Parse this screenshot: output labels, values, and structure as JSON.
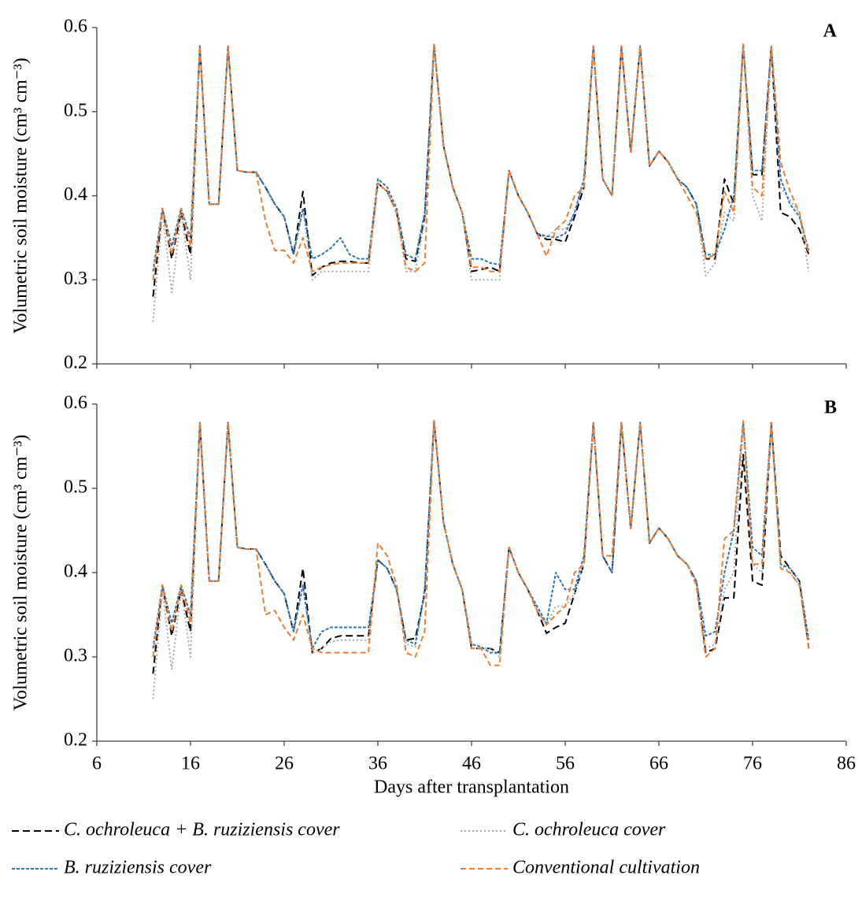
{
  "chart_data": [
    {
      "type": "line",
      "panel_label": "A",
      "ylabel": "Volumetric soil moisture (cm³ cm⁻³)",
      "xlim": [
        6,
        86
      ],
      "xticks": [
        6,
        16,
        26,
        36,
        46,
        56,
        66,
        76,
        86
      ],
      "xtick_labels": false,
      "ylim": [
        0.2,
        0.6
      ],
      "yticks": [
        0.2,
        0.3,
        0.4,
        0.5,
        0.6
      ],
      "x": [
        12,
        13,
        14,
        15,
        16,
        17,
        18,
        19,
        20,
        21,
        22,
        23,
        24,
        25,
        26,
        27,
        28,
        29,
        30,
        31,
        32,
        33,
        34,
        35,
        36,
        37,
        38,
        39,
        40,
        41,
        42,
        43,
        44,
        45,
        46,
        47,
        48,
        49,
        50,
        51,
        52,
        53,
        54,
        55,
        56,
        57,
        58,
        59,
        60,
        61,
        62,
        63,
        64,
        65,
        66,
        67,
        68,
        69,
        70,
        71,
        72,
        73,
        74,
        75,
        76,
        77,
        78,
        79,
        80,
        81,
        82
      ],
      "series": [
        {
          "color": "#000000",
          "dash": "9,5",
          "values": [
            0.28,
            0.385,
            0.325,
            0.38,
            0.33,
            0.578,
            0.39,
            0.39,
            0.578,
            0.43,
            0.428,
            0.428,
            0.41,
            0.39,
            0.375,
            0.33,
            0.405,
            0.305,
            0.315,
            0.32,
            0.322,
            0.322,
            0.32,
            0.32,
            0.415,
            0.405,
            0.38,
            0.325,
            0.322,
            0.375,
            0.58,
            0.46,
            0.41,
            0.38,
            0.31,
            0.312,
            0.315,
            0.31,
            0.43,
            0.4,
            0.38,
            0.355,
            0.348,
            0.348,
            0.345,
            0.375,
            0.41,
            0.578,
            0.42,
            0.4,
            0.578,
            0.452,
            0.578,
            0.435,
            0.453,
            0.44,
            0.42,
            0.41,
            0.39,
            0.325,
            0.325,
            0.42,
            0.39,
            0.58,
            0.425,
            0.425,
            0.578,
            0.38,
            0.375,
            0.36,
            0.33
          ]
        },
        {
          "color": "#a6a6a6",
          "dash": "2,3",
          "values": [
            0.25,
            0.38,
            0.285,
            0.38,
            0.3,
            0.578,
            0.39,
            0.39,
            0.578,
            0.43,
            0.428,
            0.428,
            0.41,
            0.39,
            0.375,
            0.33,
            0.385,
            0.3,
            0.31,
            0.31,
            0.31,
            0.31,
            0.31,
            0.31,
            0.415,
            0.405,
            0.38,
            0.31,
            0.31,
            0.37,
            0.58,
            0.46,
            0.41,
            0.38,
            0.3,
            0.3,
            0.3,
            0.3,
            0.43,
            0.4,
            0.38,
            0.355,
            0.35,
            0.36,
            0.36,
            0.38,
            0.42,
            0.578,
            0.42,
            0.4,
            0.578,
            0.452,
            0.578,
            0.435,
            0.453,
            0.44,
            0.42,
            0.41,
            0.39,
            0.305,
            0.32,
            0.38,
            0.37,
            0.58,
            0.4,
            0.37,
            0.578,
            0.41,
            0.395,
            0.38,
            0.31
          ]
        },
        {
          "color": "#2e75b6",
          "dash": "4,2",
          "values": [
            0.31,
            0.385,
            0.34,
            0.385,
            0.35,
            0.578,
            0.39,
            0.39,
            0.578,
            0.43,
            0.428,
            0.428,
            0.41,
            0.39,
            0.375,
            0.33,
            0.385,
            0.325,
            0.33,
            0.338,
            0.35,
            0.33,
            0.325,
            0.325,
            0.42,
            0.41,
            0.385,
            0.33,
            0.325,
            0.38,
            0.58,
            0.46,
            0.41,
            0.38,
            0.325,
            0.325,
            0.32,
            0.318,
            0.43,
            0.4,
            0.38,
            0.355,
            0.352,
            0.35,
            0.355,
            0.38,
            0.42,
            0.578,
            0.42,
            0.4,
            0.578,
            0.452,
            0.578,
            0.435,
            0.453,
            0.44,
            0.42,
            0.41,
            0.39,
            0.33,
            0.33,
            0.36,
            0.4,
            0.58,
            0.43,
            0.43,
            0.578,
            0.42,
            0.39,
            0.375,
            0.335
          ]
        },
        {
          "color": "#ed7d31",
          "dash": "7,4",
          "values": [
            0.3,
            0.385,
            0.33,
            0.385,
            0.34,
            0.578,
            0.39,
            0.39,
            0.578,
            0.43,
            0.428,
            0.428,
            0.37,
            0.335,
            0.335,
            0.32,
            0.35,
            0.31,
            0.315,
            0.318,
            0.32,
            0.32,
            0.32,
            0.32,
            0.415,
            0.405,
            0.38,
            0.315,
            0.31,
            0.32,
            0.58,
            0.46,
            0.41,
            0.38,
            0.315,
            0.315,
            0.31,
            0.31,
            0.43,
            0.4,
            0.38,
            0.355,
            0.328,
            0.36,
            0.37,
            0.4,
            0.41,
            0.578,
            0.42,
            0.4,
            0.578,
            0.452,
            0.578,
            0.435,
            0.453,
            0.44,
            0.42,
            0.4,
            0.38,
            0.325,
            0.33,
            0.405,
            0.38,
            0.58,
            0.41,
            0.4,
            0.578,
            0.44,
            0.405,
            0.38,
            0.33
          ]
        }
      ]
    },
    {
      "type": "line",
      "panel_label": "B",
      "ylabel": "Volumetric soil moisture (cm³ cm⁻³)",
      "xlabel": "Days after transplantation",
      "xlim": [
        6,
        86
      ],
      "xticks": [
        6,
        16,
        26,
        36,
        46,
        56,
        66,
        76,
        86
      ],
      "xtick_labels": true,
      "ylim": [
        0.2,
        0.6
      ],
      "yticks": [
        0.2,
        0.3,
        0.4,
        0.5,
        0.6
      ],
      "x": [
        12,
        13,
        14,
        15,
        16,
        17,
        18,
        19,
        20,
        21,
        22,
        23,
        24,
        25,
        26,
        27,
        28,
        29,
        30,
        31,
        32,
        33,
        34,
        35,
        36,
        37,
        38,
        39,
        40,
        41,
        42,
        43,
        44,
        45,
        46,
        47,
        48,
        49,
        50,
        51,
        52,
        53,
        54,
        55,
        56,
        57,
        58,
        59,
        60,
        61,
        62,
        63,
        64,
        65,
        66,
        67,
        68,
        69,
        70,
        71,
        72,
        73,
        74,
        75,
        76,
        77,
        78,
        79,
        80,
        81,
        82
      ],
      "series": [
        {
          "name": "C. ochroleuca + B. ruziziensis cover",
          "color": "#000000",
          "dash": "9,5",
          "values": [
            0.28,
            0.385,
            0.325,
            0.38,
            0.33,
            0.578,
            0.39,
            0.39,
            0.578,
            0.43,
            0.428,
            0.428,
            0.41,
            0.39,
            0.375,
            0.33,
            0.405,
            0.305,
            0.31,
            0.322,
            0.325,
            0.325,
            0.325,
            0.325,
            0.415,
            0.405,
            0.38,
            0.32,
            0.322,
            0.375,
            0.58,
            0.46,
            0.41,
            0.38,
            0.31,
            0.31,
            0.31,
            0.305,
            0.43,
            0.4,
            0.38,
            0.355,
            0.328,
            0.335,
            0.34,
            0.375,
            0.41,
            0.578,
            0.42,
            0.4,
            0.578,
            0.452,
            0.578,
            0.435,
            0.453,
            0.44,
            0.42,
            0.41,
            0.39,
            0.305,
            0.31,
            0.37,
            0.37,
            0.54,
            0.39,
            0.385,
            0.578,
            0.42,
            0.405,
            0.39,
            0.31
          ]
        },
        {
          "name": "C. ochroleuca cover",
          "color": "#a6a6a6",
          "dash": "2,3",
          "values": [
            0.25,
            0.38,
            0.285,
            0.38,
            0.3,
            0.578,
            0.39,
            0.39,
            0.578,
            0.43,
            0.428,
            0.428,
            0.41,
            0.39,
            0.375,
            0.33,
            0.385,
            0.305,
            0.31,
            0.318,
            0.32,
            0.32,
            0.32,
            0.32,
            0.415,
            0.405,
            0.38,
            0.315,
            0.312,
            0.375,
            0.58,
            0.46,
            0.41,
            0.38,
            0.31,
            0.31,
            0.31,
            0.3,
            0.43,
            0.4,
            0.38,
            0.355,
            0.338,
            0.36,
            0.36,
            0.375,
            0.41,
            0.578,
            0.42,
            0.4,
            0.578,
            0.452,
            0.578,
            0.435,
            0.453,
            0.44,
            0.42,
            0.41,
            0.39,
            0.31,
            0.315,
            0.38,
            0.4,
            0.575,
            0.41,
            0.4,
            0.578,
            0.41,
            0.4,
            0.385,
            0.31
          ]
        },
        {
          "name": "B. ruziziensis cover",
          "color": "#2e75b6",
          "dash": "4,2",
          "values": [
            0.31,
            0.385,
            0.34,
            0.385,
            0.35,
            0.578,
            0.39,
            0.39,
            0.578,
            0.43,
            0.428,
            0.428,
            0.41,
            0.39,
            0.375,
            0.33,
            0.385,
            0.31,
            0.33,
            0.335,
            0.335,
            0.335,
            0.335,
            0.335,
            0.415,
            0.405,
            0.38,
            0.32,
            0.315,
            0.38,
            0.58,
            0.46,
            0.41,
            0.38,
            0.315,
            0.312,
            0.305,
            0.305,
            0.43,
            0.4,
            0.38,
            0.36,
            0.34,
            0.4,
            0.38,
            0.38,
            0.42,
            0.578,
            0.42,
            0.4,
            0.578,
            0.452,
            0.578,
            0.435,
            0.453,
            0.44,
            0.42,
            0.41,
            0.39,
            0.325,
            0.33,
            0.4,
            0.45,
            0.58,
            0.43,
            0.42,
            0.578,
            0.41,
            0.405,
            0.39,
            0.32
          ]
        },
        {
          "name": "Conventional cultivation",
          "color": "#ed7d31",
          "dash": "7,4",
          "values": [
            0.3,
            0.385,
            0.33,
            0.385,
            0.34,
            0.578,
            0.39,
            0.39,
            0.578,
            0.43,
            0.428,
            0.428,
            0.35,
            0.355,
            0.335,
            0.32,
            0.35,
            0.31,
            0.305,
            0.305,
            0.305,
            0.305,
            0.305,
            0.305,
            0.435,
            0.42,
            0.385,
            0.305,
            0.3,
            0.33,
            0.58,
            0.46,
            0.41,
            0.38,
            0.31,
            0.31,
            0.29,
            0.29,
            0.43,
            0.4,
            0.38,
            0.355,
            0.338,
            0.35,
            0.36,
            0.4,
            0.41,
            0.578,
            0.42,
            0.42,
            0.578,
            0.452,
            0.578,
            0.435,
            0.453,
            0.44,
            0.42,
            0.41,
            0.385,
            0.3,
            0.31,
            0.44,
            0.45,
            0.58,
            0.41,
            0.41,
            0.578,
            0.405,
            0.4,
            0.385,
            0.31
          ]
        }
      ]
    }
  ]
}
